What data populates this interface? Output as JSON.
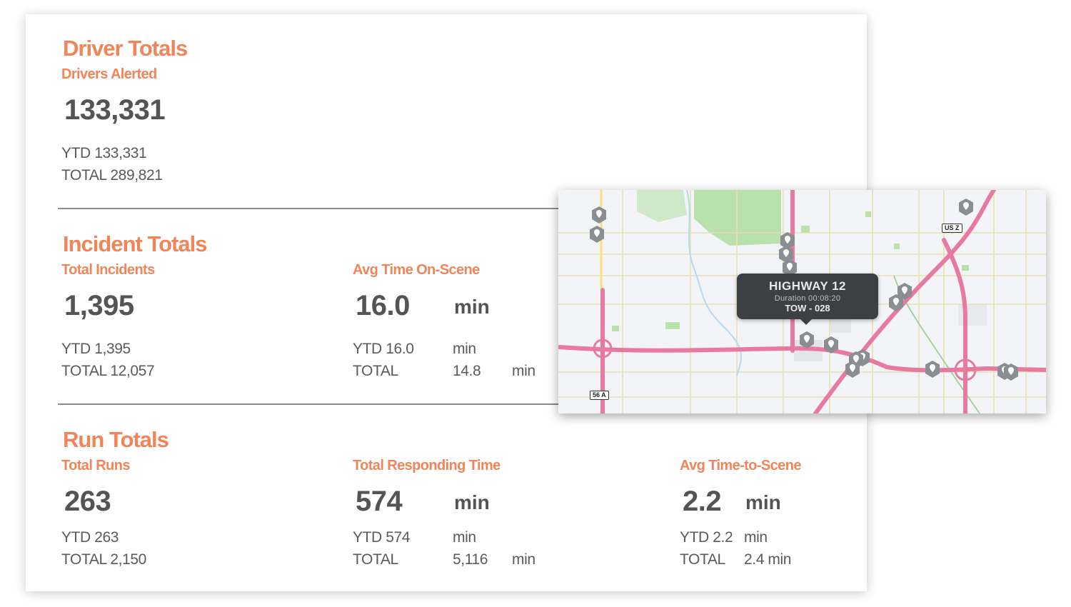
{
  "driver": {
    "title": "Driver Totals",
    "alerted": {
      "label": "Drivers Alerted",
      "value": "133,331",
      "ytd": "YTD 133,331",
      "total": "TOTAL 289,821"
    }
  },
  "incident": {
    "title": "Incident Totals",
    "total_incidents": {
      "label": "Total Incidents",
      "value": "1,395",
      "ytd": "YTD 1,395",
      "total": "TOTAL 12,057"
    },
    "avg_on_scene": {
      "label": "Avg Time On-Scene",
      "value": "16.0",
      "unit": "min",
      "ytd": "YTD 16.0",
      "ytd_unit": "min",
      "total_label": "TOTAL",
      "total_value": "14.8",
      "total_unit": "min"
    }
  },
  "run": {
    "title": "Run Totals",
    "total_runs": {
      "label": "Total Runs",
      "value": "263",
      "ytd": "YTD 263",
      "total": "TOTAL 2,150"
    },
    "responding": {
      "label": "Total Responding Time",
      "value": "574",
      "unit": "min",
      "ytd": "YTD 574",
      "ytd_unit": "min",
      "total_label": "TOTAL",
      "total_value": "5,116",
      "total_unit": "min"
    },
    "time_to_scene": {
      "label": "Avg Time-to-Scene",
      "value": "2.2",
      "unit": "min",
      "ytd": "YTD 2.2",
      "ytd_unit": "min",
      "total_label": "TOTAL",
      "total_value": "2.4 min"
    }
  },
  "map": {
    "tooltip": {
      "title": "HIGHWAY 12",
      "duration": "Duration 00:08:20",
      "unit_id": "TOW - 028"
    },
    "shields": [
      "US Z",
      "56 A"
    ],
    "icon": "map-pin-icon",
    "colors": {
      "highway": "#e879a3",
      "park": "#a9dc9a",
      "road": "#e8e0b0",
      "accent": "#f0855a"
    }
  }
}
